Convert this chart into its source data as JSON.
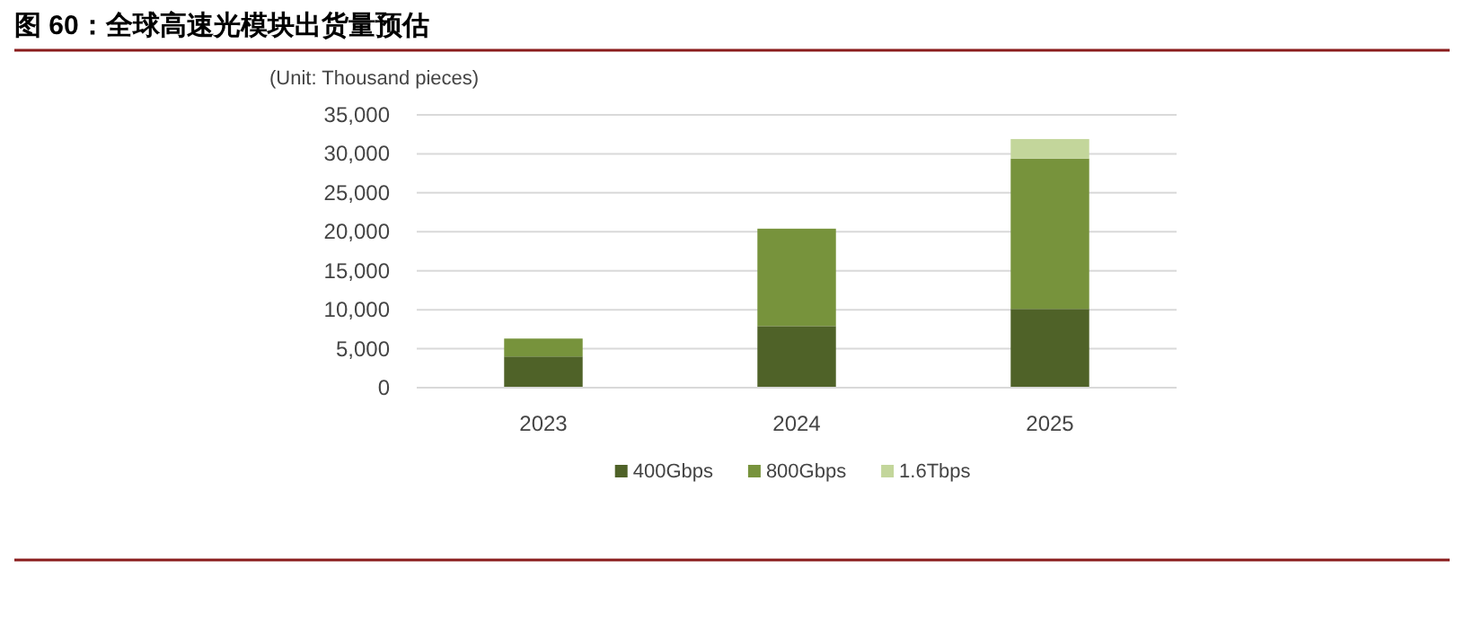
{
  "chart_data": {
    "type": "bar",
    "title": "图 60：全球高速光模块出货量预估",
    "ylabel": "(Unit: Thousand pieces)",
    "categories": [
      "2023",
      "2024",
      "2025"
    ],
    "stacked": true,
    "series": [
      {
        "name": "400Gbps",
        "color": "#4f6228",
        "values": [
          4000,
          7900,
          10100
        ]
      },
      {
        "name": "800Gbps",
        "color": "#77933c",
        "values": [
          2300,
          12500,
          19300
        ]
      },
      {
        "name": "1.6Tbps",
        "color": "#c3d69b",
        "values": [
          null,
          null,
          2500
        ]
      }
    ],
    "ylim": [
      0,
      35000
    ],
    "yticks": [
      {
        "value": 0,
        "label": "0"
      },
      {
        "value": 5000,
        "label": "5,000"
      },
      {
        "value": 10000,
        "label": "10,000"
      },
      {
        "value": 15000,
        "label": "15,000"
      },
      {
        "value": 20000,
        "label": "20,000"
      },
      {
        "value": 25000,
        "label": "25,000"
      },
      {
        "value": 30000,
        "label": "30,000"
      },
      {
        "value": 35000,
        "label": "35,000"
      }
    ],
    "grid": "y",
    "legend": "bottom"
  }
}
